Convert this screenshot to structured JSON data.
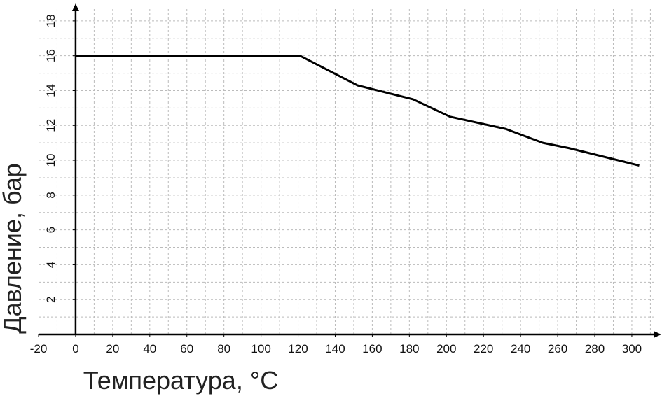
{
  "chart_data": {
    "type": "line",
    "xlabel": "Температура, °C",
    "ylabel": "Давление, бар",
    "x": [
      0,
      121,
      152,
      182,
      202,
      232,
      252,
      266,
      304
    ],
    "series": [
      {
        "color": "#000000",
        "values": [
          16,
          16,
          14.3,
          13.5,
          12.5,
          11.8,
          11,
          10.7,
          9.7
        ]
      }
    ],
    "xlim": [
      -20,
      314
    ],
    "ylim": [
      0,
      19
    ],
    "xticks": [
      -20,
      0,
      20,
      40,
      60,
      80,
      100,
      120,
      140,
      160,
      180,
      200,
      220,
      240,
      260,
      280,
      300
    ],
    "yticks": [
      2,
      4,
      6,
      8,
      10,
      12,
      14,
      16,
      18
    ],
    "xgrid": [
      -10,
      10,
      20,
      30,
      40,
      50,
      60,
      70,
      80,
      90,
      100,
      110,
      120,
      130,
      140,
      150,
      160,
      170,
      180,
      190,
      200,
      210,
      220,
      230,
      240,
      250,
      260,
      270,
      280,
      290,
      300,
      310
    ],
    "ygrid": [
      1,
      2,
      3,
      4,
      5,
      6,
      7,
      8,
      9,
      10,
      11,
      12,
      13,
      14,
      15,
      16,
      17,
      18
    ],
    "grid": true
  }
}
